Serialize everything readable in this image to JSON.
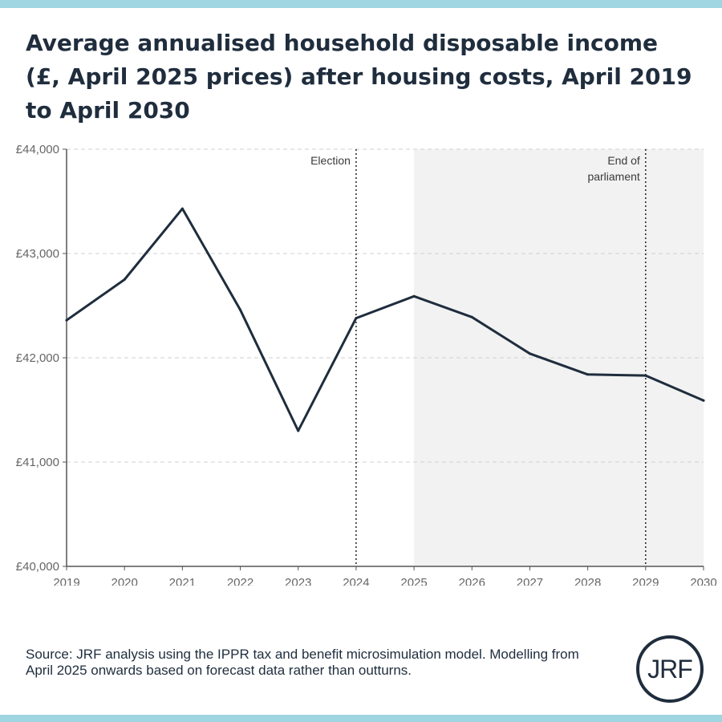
{
  "title": "Average annualised household disposable income (£, April 2025 prices) after housing costs, April 2019 to April 2030",
  "source": "Source: JRF analysis using the IPPR tax and benefit microsimulation model. Modelling from April 2025 onwards based on forecast data rather than outturns.",
  "logo_text": "JRF",
  "colors": {
    "line": "#1f2d3d",
    "shade": "#f2f2f2",
    "grid": "#d0d0d0",
    "axis": "#555555",
    "accent_bar": "#9fd6e2"
  },
  "chart_data": {
    "type": "line",
    "title": "",
    "xlabel": "",
    "ylabel": "",
    "x": [
      2019,
      2020,
      2021,
      2022,
      2023,
      2024,
      2025,
      2026,
      2027,
      2028,
      2029,
      2030
    ],
    "series": [
      {
        "values": [
          42360,
          42750,
          43430,
          42460,
          41300,
          42380,
          42590,
          42390,
          42040,
          41840,
          41830,
          41590
        ]
      }
    ],
    "xlim": [
      2019,
      2030
    ],
    "ylim": [
      40000,
      44000
    ],
    "yticks": [
      40000,
      41000,
      42000,
      43000,
      44000
    ],
    "ytick_labels": [
      "£40,000",
      "£41,000",
      "£42,000",
      "£43,000",
      "£44,000"
    ],
    "grid": "horizontal dashed",
    "shaded_region": {
      "from": 2025,
      "to": 2030
    },
    "annotations": [
      {
        "x": 2024,
        "lines": [
          "Election"
        ],
        "style": "dotted vertical line"
      },
      {
        "x": 2029,
        "lines": [
          "End of",
          "parliament"
        ],
        "style": "dotted vertical line"
      }
    ]
  }
}
